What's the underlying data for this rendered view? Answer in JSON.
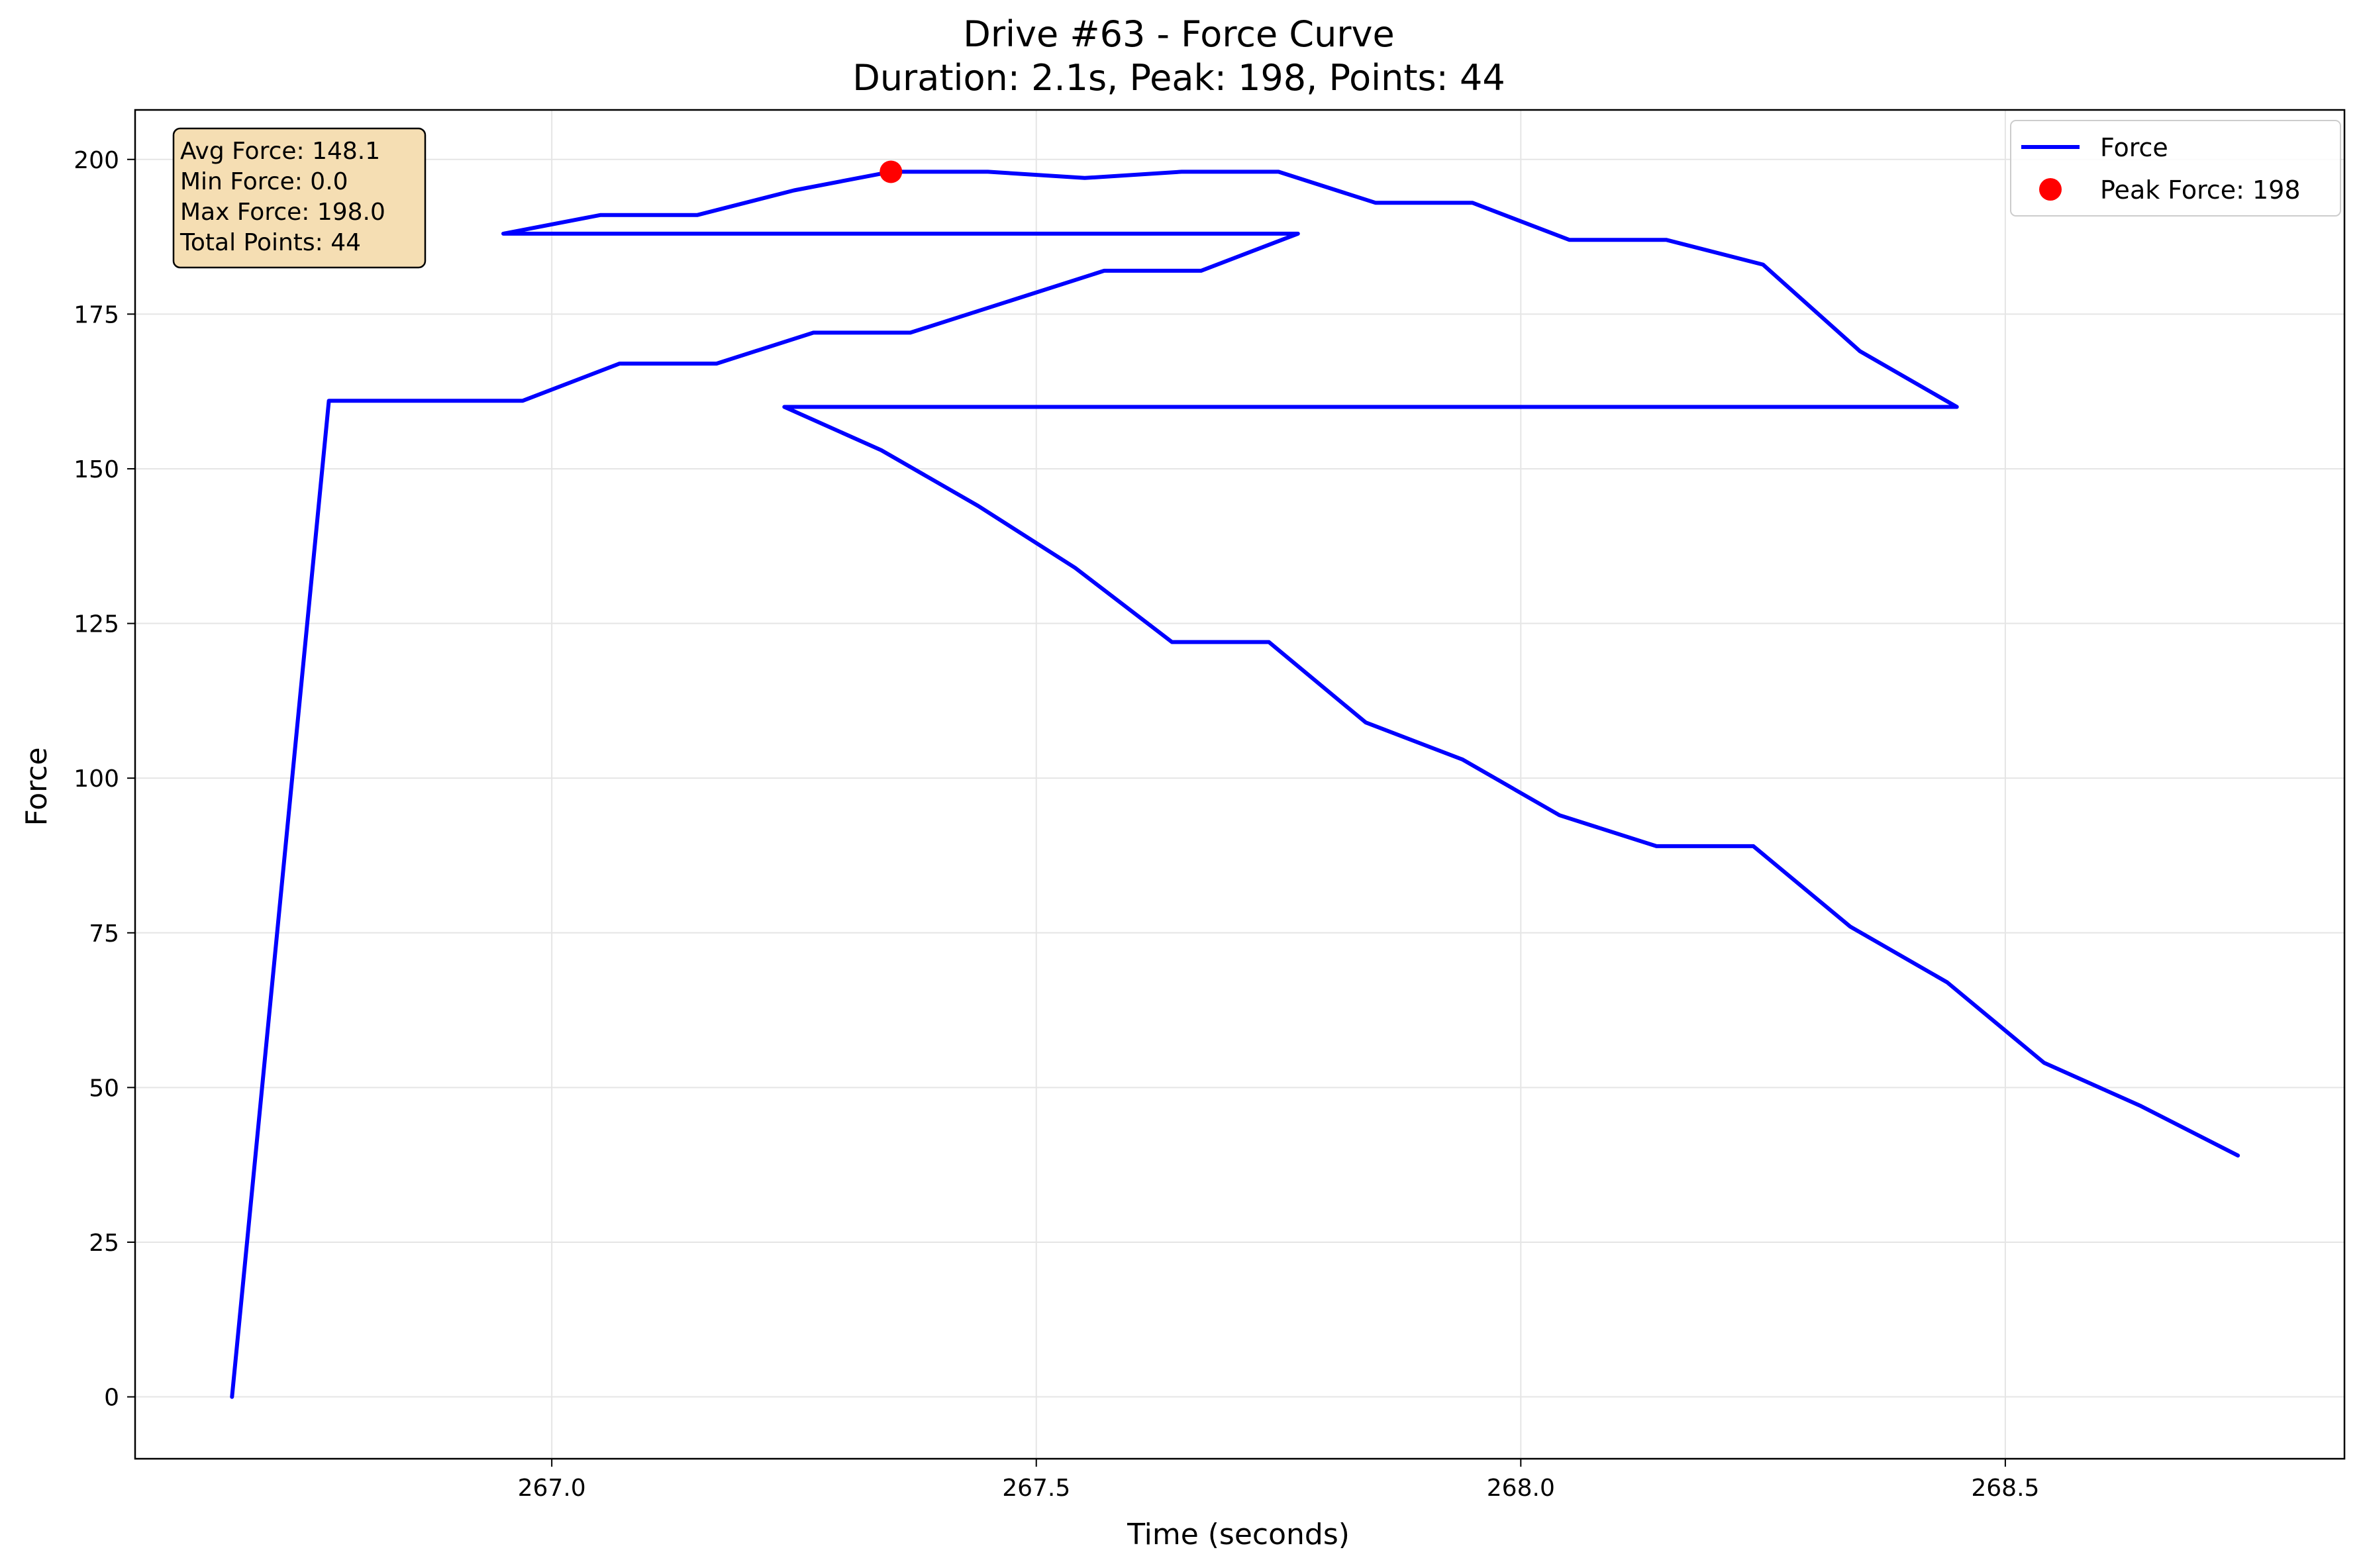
{
  "chart_data": {
    "type": "line",
    "title": "Drive #63 - Force Curve",
    "subtitle": "Duration: 2.1s, Peak: 198, Points: 44",
    "xlabel": "Time (seconds)",
    "ylabel": "Force",
    "xlim": [
      266.57,
      268.85
    ],
    "ylim": [
      -10,
      208
    ],
    "xticks": [
      267.0,
      267.5,
      268.0,
      268.5
    ],
    "xtick_labels": [
      "267.0",
      "267.5",
      "268.0",
      "268.5"
    ],
    "yticks": [
      0,
      25,
      50,
      75,
      100,
      125,
      150,
      175,
      200
    ],
    "ytick_labels": [
      "0",
      "25",
      "50",
      "75",
      "100",
      "125",
      "150",
      "175",
      "200"
    ],
    "grid": true,
    "legend_position": "top-right",
    "series": [
      {
        "name": "Force",
        "color": "#0000ff",
        "x": [
          266.67,
          266.77,
          266.87,
          266.97,
          267.07,
          267.17,
          267.27,
          267.37,
          267.47,
          267.57,
          267.67,
          267.77,
          266.95,
          267.05,
          267.15,
          267.25,
          267.35,
          267.45,
          267.55,
          267.65,
          267.75,
          267.85,
          267.95,
          268.05,
          268.15,
          268.25,
          268.35,
          268.45,
          267.24,
          267.34,
          267.44,
          267.54,
          267.64,
          267.74,
          267.84,
          267.94,
          268.04,
          268.14,
          268.24,
          268.34,
          268.44,
          268.54,
          268.64,
          268.74
        ],
        "y": [
          0,
          161,
          161,
          161,
          167,
          167,
          172,
          172,
          177,
          182,
          182,
          188,
          188,
          191,
          191,
          195,
          198,
          198,
          197,
          198,
          198,
          193,
          193,
          187,
          187,
          183,
          169,
          160,
          160,
          153,
          144,
          134,
          122,
          122,
          109,
          103,
          94,
          89,
          89,
          76,
          67,
          54,
          47,
          39
        ]
      }
    ],
    "peak": {
      "name": "Peak Force: 198",
      "x": 267.35,
      "y": 198,
      "color": "#ff0000"
    },
    "stats": [
      "Avg Force: 148.1",
      "Min Force: 0.0",
      "Max Force: 198.0",
      "Total Points: 44"
    ],
    "colors": {
      "stats_box_fill": "#f5deb3",
      "grid": "#e5e5e5"
    }
  }
}
